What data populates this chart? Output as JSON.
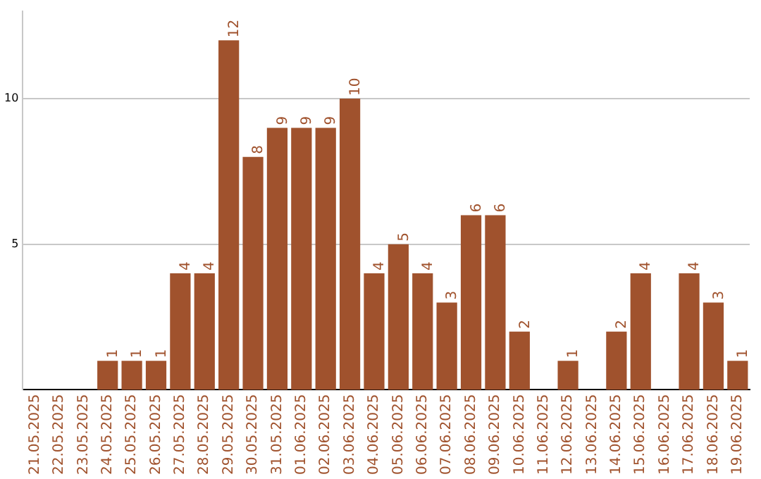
{
  "chart_data": {
    "type": "bar",
    "categories": [
      "21.05.2025",
      "22.05.2025",
      "23.05.2025",
      "24.05.2025",
      "25.05.2025",
      "26.05.2025",
      "27.05.2025",
      "28.05.2025",
      "29.05.2025",
      "30.05.2025",
      "31.05.2025",
      "01.06.2025",
      "02.06.2025",
      "03.06.2025",
      "04.06.2025",
      "05.06.2025",
      "06.06.2025",
      "07.06.2025",
      "08.06.2025",
      "09.06.2025",
      "10.06.2025",
      "11.06.2025",
      "12.06.2025",
      "13.06.2025",
      "14.06.2025",
      "15.06.2025",
      "16.06.2025",
      "17.06.2025",
      "18.06.2025",
      "19.06.2025"
    ],
    "values": [
      0,
      0,
      0,
      1,
      1,
      1,
      4,
      4,
      12,
      8,
      9,
      9,
      9,
      10,
      4,
      5,
      4,
      3,
      6,
      6,
      2,
      0,
      1,
      0,
      2,
      4,
      0,
      4,
      3,
      1
    ],
    "value_labels": [
      null,
      null,
      null,
      "1",
      "1",
      "1",
      "4",
      "4",
      "12",
      "8",
      "9",
      "9",
      "9",
      "10",
      "4",
      "5",
      "4",
      "3",
      "6",
      "6",
      "2",
      null,
      "1",
      null,
      "2",
      "4",
      null,
      "4",
      "3",
      "1"
    ],
    "color": "#a0522d",
    "ylim": [
      0,
      13
    ],
    "yticks": [
      5,
      10
    ],
    "grid": "y"
  }
}
